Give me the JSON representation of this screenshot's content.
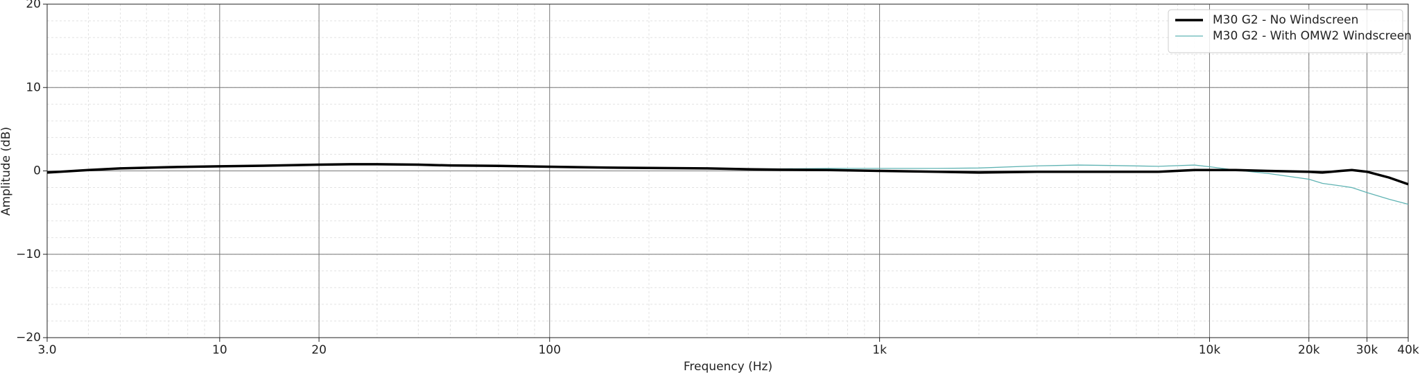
{
  "chart_data": {
    "type": "line",
    "xlabel": "Frequency (Hz)",
    "ylabel": "Amplitude (dB)",
    "x": [
      3,
      4,
      5,
      7,
      10,
      15,
      20,
      25,
      30,
      40,
      50,
      70,
      100,
      150,
      200,
      300,
      400,
      500,
      700,
      1000,
      1500,
      2000,
      3000,
      4000,
      5000,
      7000,
      9000,
      10000,
      12000,
      15000,
      20000,
      22000,
      25000,
      27000,
      30000,
      35000,
      40000
    ],
    "series": [
      {
        "name": "M30 G2 - No Windscreen",
        "color": "#000000",
        "values": [
          -0.2,
          0.1,
          0.3,
          0.45,
          0.55,
          0.65,
          0.75,
          0.8,
          0.8,
          0.75,
          0.65,
          0.6,
          0.5,
          0.4,
          0.35,
          0.3,
          0.2,
          0.15,
          0.1,
          0,
          -0.1,
          -0.2,
          -0.1,
          -0.1,
          -0.1,
          -0.1,
          0.1,
          0.1,
          0.1,
          0,
          -0.1,
          -0.2,
          0,
          0.1,
          -0.1,
          -0.8,
          -1.6
        ]
      },
      {
        "name": "M30 G2 - With OMW2 Windscreen",
        "color": "#5fb3b3",
        "values": [
          -0.2,
          0.1,
          0.3,
          0.45,
          0.55,
          0.65,
          0.75,
          0.8,
          0.8,
          0.75,
          0.65,
          0.6,
          0.5,
          0.4,
          0.35,
          0.3,
          0.25,
          0.25,
          0.3,
          0.3,
          0.3,
          0.35,
          0.6,
          0.7,
          0.65,
          0.55,
          0.7,
          0.5,
          0.1,
          -0.3,
          -1.0,
          -1.5,
          -1.8,
          -2.0,
          -2.6,
          -3.4,
          -4.0
        ]
      }
    ],
    "xscale": "log",
    "xlim": [
      3,
      40000
    ],
    "xticks": [
      {
        "value": 3,
        "label": "3.0"
      },
      10,
      20,
      100,
      {
        "value": 1000,
        "label": "1k"
      },
      {
        "value": 10000,
        "label": "10k"
      },
      {
        "value": 20000,
        "label": "20k"
      },
      {
        "value": 30000,
        "label": "30k"
      },
      {
        "value": 40000,
        "label": "40k"
      }
    ],
    "ylim": [
      -20,
      20
    ],
    "yticks": [
      {
        "value": -20,
        "label": "−20"
      },
      {
        "value": -10,
        "label": "−10"
      },
      0,
      10,
      20
    ],
    "grid": true,
    "minor_grid": true,
    "legend": "upper right"
  }
}
